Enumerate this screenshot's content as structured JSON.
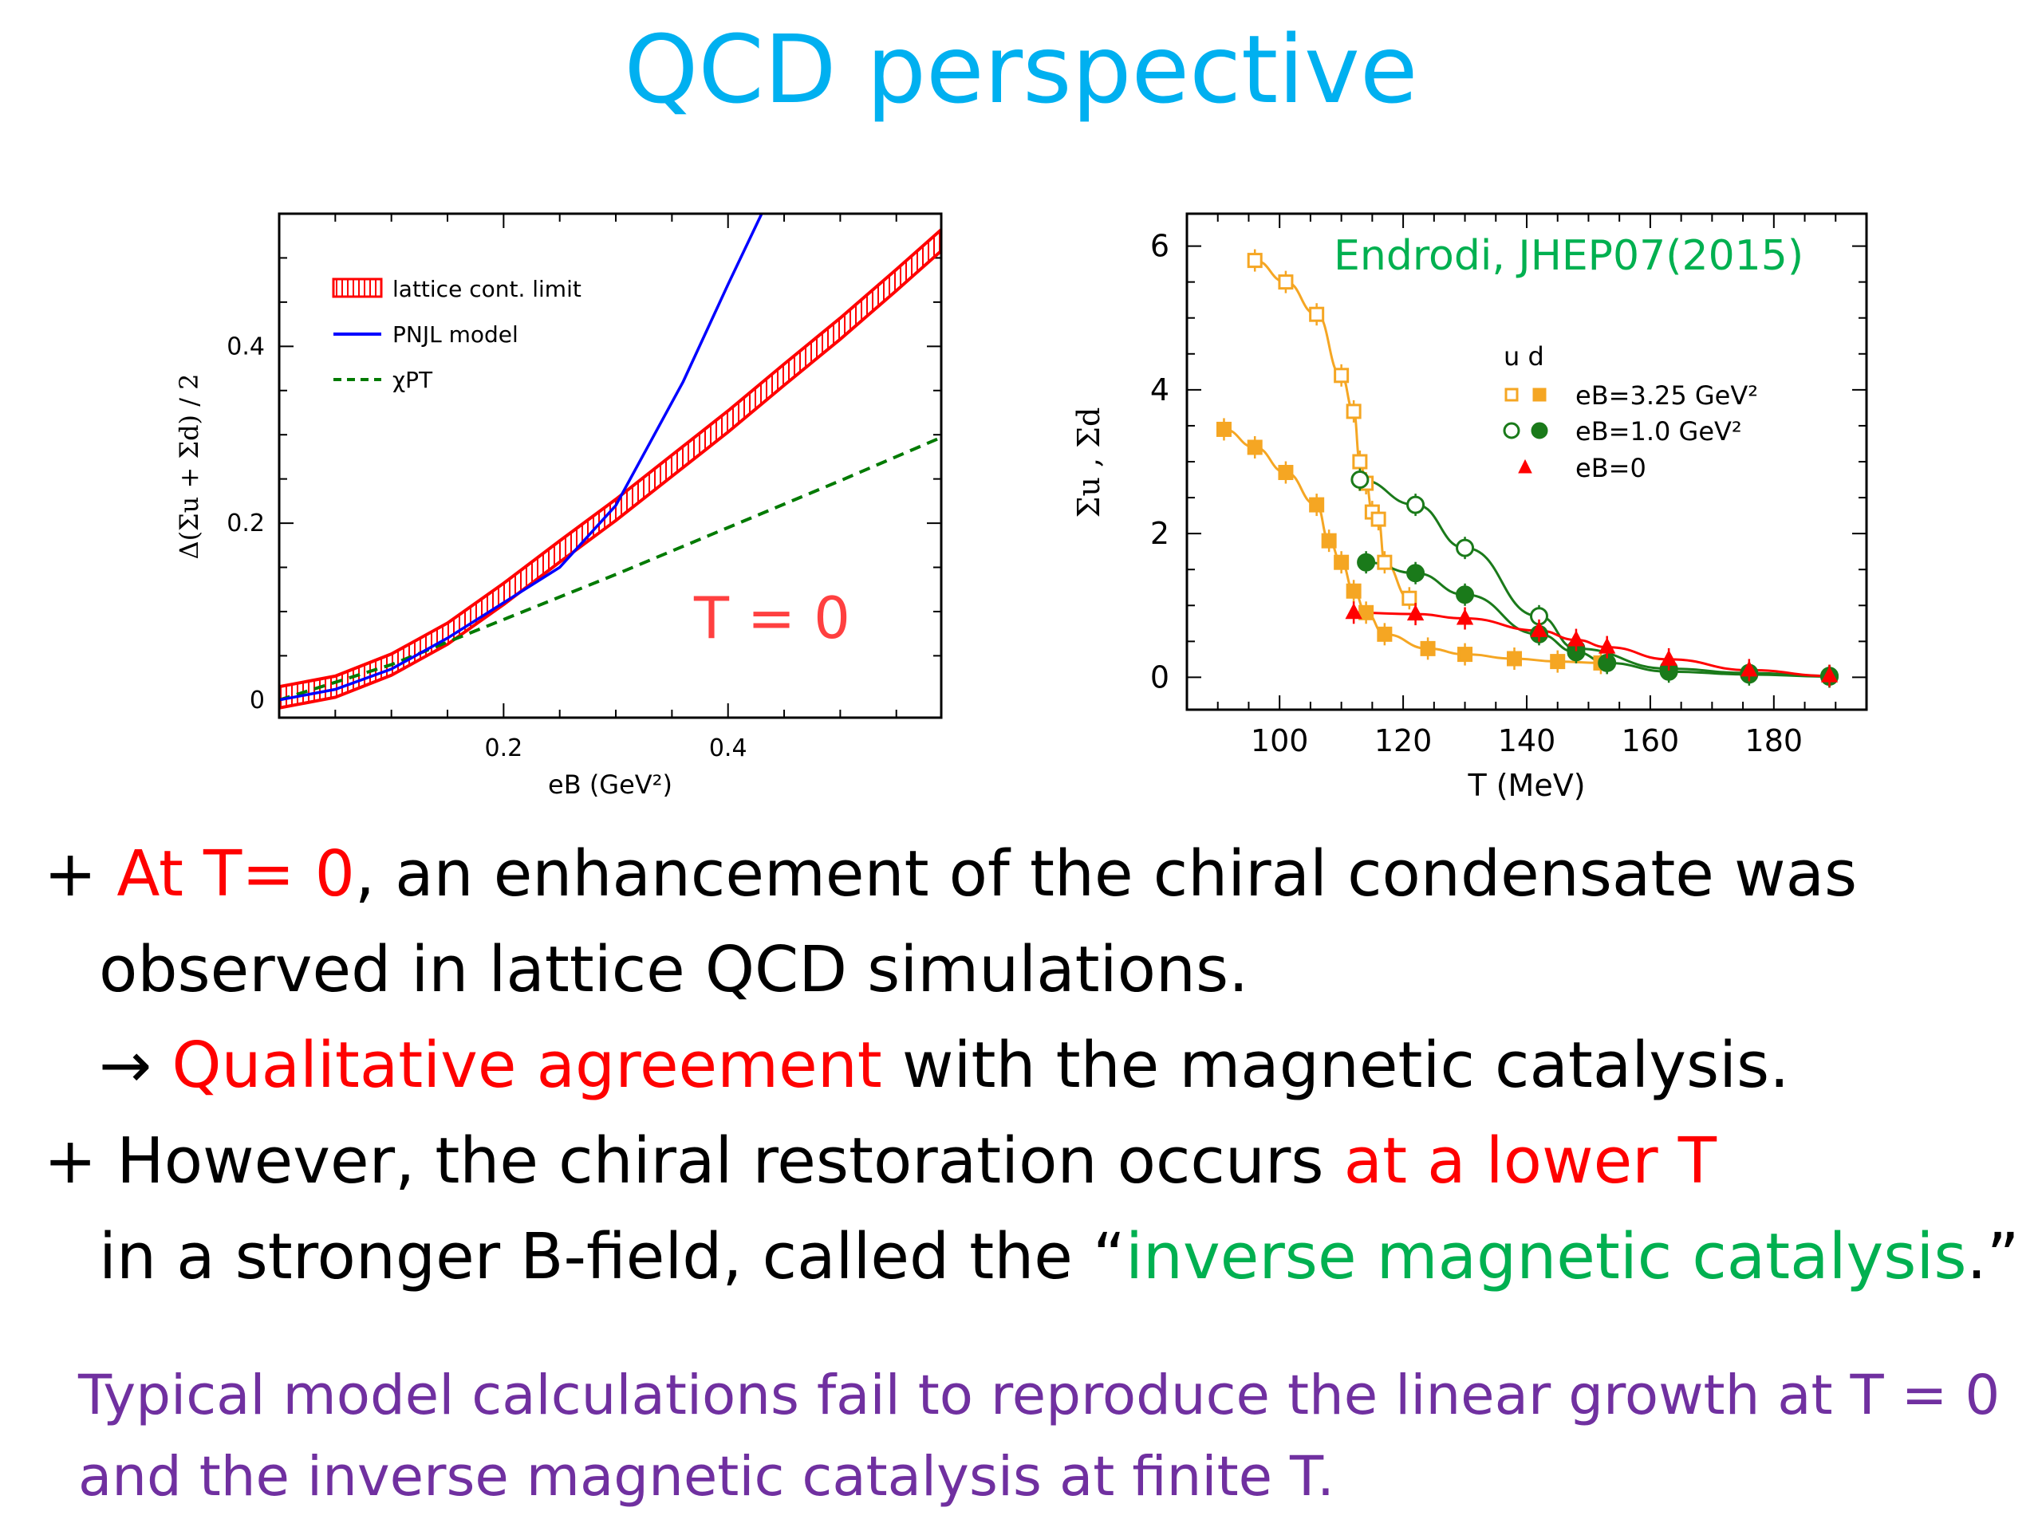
{
  "slide": {
    "title": "QCD perspective"
  },
  "bullets": {
    "b1_prefix": "+ ",
    "b1_red": "At T= 0",
    "b1_rest": ", an enhancement of the chiral condensate was",
    "b1_line2": "observed in lattice QCD simulations.",
    "b2_arrow": "→ ",
    "b2_red": "Qualitative agreement",
    "b2_rest": " with the magnetic catalysis.",
    "b3_prefix": "+ However, the chiral restoration occurs ",
    "b3_red": "at a lower T",
    "b3_line2_pre": "in a stronger B-field, called the “",
    "b3_green": "inverse magnetic catalysis",
    "b3_line2_post": ".”"
  },
  "note": {
    "line1": "Typical model calculations fail to reproduce the linear growth at T = 0",
    "line2": "and the inverse magnetic catalysis at finite T."
  },
  "chart_data": [
    {
      "type": "line",
      "xlabel": "eB (GeV²)",
      "ylabel": "Δ(Σu + Σd) / 2",
      "xlim": [
        0,
        0.59
      ],
      "ylim": [
        -0.02,
        0.55
      ],
      "xticks": [
        {
          "v": 0.2,
          "label": "0.2"
        },
        {
          "v": 0.4,
          "label": "0.4"
        }
      ],
      "yticks": [
        {
          "v": 0,
          "label": "0"
        },
        {
          "v": 0.2,
          "label": "0.2"
        },
        {
          "v": 0.4,
          "label": "0.4"
        }
      ],
      "annotation": "T = 0",
      "legend": [
        {
          "label": "lattice cont. limit",
          "style": "band",
          "color": "#ff0000"
        },
        {
          "label": "PNJL model",
          "style": "solid",
          "color": "#0000ff"
        },
        {
          "label": "χPT",
          "style": "dashed",
          "color": "#007a00"
        }
      ],
      "series": [
        {
          "name": "lattice cont. limit",
          "color": "#ff0000",
          "x": [
            0,
            0.05,
            0.1,
            0.15,
            0.2,
            0.25,
            0.3,
            0.35,
            0.4,
            0.45,
            0.5,
            0.55,
            0.59
          ],
          "y": [
            0.003,
            0.015,
            0.04,
            0.075,
            0.12,
            0.168,
            0.215,
            0.265,
            0.315,
            0.368,
            0.42,
            0.475,
            0.52
          ],
          "halfwidth": 0.012
        },
        {
          "name": "PNJL model",
          "color": "#0000ff",
          "x": [
            0,
            0.05,
            0.1,
            0.15,
            0.2,
            0.25,
            0.3,
            0.33,
            0.36,
            0.4,
            0.43
          ],
          "y": [
            0.0,
            0.012,
            0.035,
            0.07,
            0.11,
            0.15,
            0.22,
            0.29,
            0.36,
            0.47,
            0.55
          ]
        },
        {
          "name": "χPT",
          "color": "#007a00",
          "x": [
            0,
            0.1,
            0.2,
            0.3,
            0.4,
            0.5,
            0.59
          ],
          "y": [
            0.0,
            0.04,
            0.091,
            0.142,
            0.195,
            0.248,
            0.297
          ]
        }
      ]
    },
    {
      "type": "scatter",
      "xlabel": "T (MeV)",
      "ylabel": "Σu , Σd",
      "xlim": [
        85,
        195
      ],
      "ylim": [
        -0.45,
        6.45
      ],
      "xticks": [
        {
          "v": 100,
          "label": "100"
        },
        {
          "v": 120,
          "label": "120"
        },
        {
          "v": 140,
          "label": "140"
        },
        {
          "v": 160,
          "label": "160"
        },
        {
          "v": 180,
          "label": "180"
        }
      ],
      "yticks": [
        {
          "v": 0,
          "label": "0"
        },
        {
          "v": 2,
          "label": "2"
        },
        {
          "v": 4,
          "label": "4"
        },
        {
          "v": 6,
          "label": "6"
        }
      ],
      "annotation": "Endrodi, JHEP07(2015)",
      "legend_header": "u d",
      "legend": [
        {
          "label": "eB=3.25 GeV²",
          "color": "#f5a623",
          "marker": "square"
        },
        {
          "label": "eB=1.0 GeV²",
          "color": "#1a7a1a",
          "marker": "circle"
        },
        {
          "label": "eB=0",
          "color": "#ff0000",
          "marker": "triangle"
        }
      ],
      "series": [
        {
          "name": "eB=3.25 GeV² u",
          "color": "#f5a623",
          "marker": "square",
          "filled": false,
          "x": [
            96,
            101,
            106,
            110,
            112,
            113,
            114,
            115,
            116,
            117,
            121
          ],
          "y": [
            5.8,
            5.5,
            5.05,
            4.2,
            3.7,
            3.0,
            2.7,
            2.3,
            2.2,
            1.6,
            1.1
          ]
        },
        {
          "name": "eB=3.25 GeV² d",
          "color": "#f5a623",
          "marker": "square",
          "filled": true,
          "x": [
            91,
            96,
            101,
            106,
            108,
            110,
            112,
            114,
            117,
            124,
            130,
            138,
            145,
            152
          ],
          "y": [
            3.45,
            3.2,
            2.85,
            2.4,
            1.9,
            1.6,
            1.2,
            0.9,
            0.6,
            0.4,
            0.32,
            0.26,
            0.22,
            0.2
          ]
        },
        {
          "name": "eB=1.0 GeV² u",
          "color": "#1a7a1a",
          "marker": "circle",
          "filled": false,
          "x": [
            113,
            122,
            130,
            142,
            148,
            163,
            176,
            189
          ],
          "y": [
            2.75,
            2.4,
            1.8,
            0.85,
            0.4,
            0.12,
            0.06,
            0.02
          ]
        },
        {
          "name": "eB=1.0 GeV² d",
          "color": "#1a7a1a",
          "marker": "circle",
          "filled": true,
          "x": [
            114,
            122,
            130,
            142,
            148,
            153,
            163,
            176,
            189
          ],
          "y": [
            1.6,
            1.45,
            1.15,
            0.6,
            0.35,
            0.2,
            0.08,
            0.04,
            0.01
          ]
        },
        {
          "name": "eB=0",
          "color": "#ff0000",
          "marker": "triangle",
          "filled": true,
          "x": [
            112,
            122,
            130,
            142,
            148,
            153,
            163,
            176,
            189
          ],
          "y": [
            0.9,
            0.88,
            0.82,
            0.65,
            0.52,
            0.42,
            0.25,
            0.1,
            0.02
          ]
        }
      ]
    }
  ]
}
